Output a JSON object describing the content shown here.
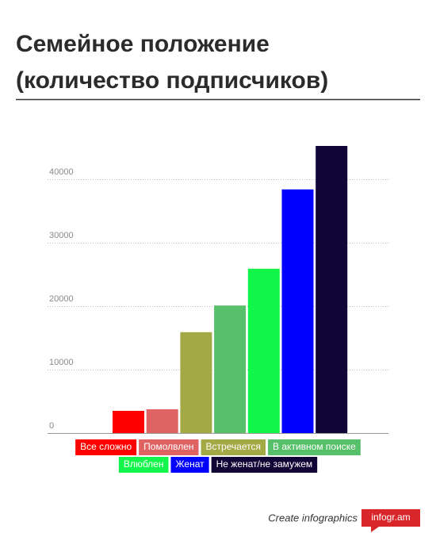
{
  "chart_data": {
    "type": "bar",
    "title": [
      "Семейное положение",
      "(количество подписчиков)"
    ],
    "categories": [
      "Все сложно",
      "Помолвлен",
      "Встречается",
      "В активном поиске",
      "Влюблен",
      "Женат",
      "Не женат/не замужем"
    ],
    "values": [
      3500,
      3750,
      15900,
      20100,
      25900,
      38400,
      45250
    ],
    "colors": [
      "#ff0000",
      "#df6363",
      "#a3aa45",
      "#57c06a",
      "#12f54a",
      "#0000ff",
      "#110535"
    ],
    "ylim": [
      0,
      50000
    ],
    "yticks": [
      0,
      10000,
      20000,
      30000,
      40000
    ],
    "grid": true,
    "footer_text": "Create infographics",
    "footer_logo": "infogr.am"
  }
}
